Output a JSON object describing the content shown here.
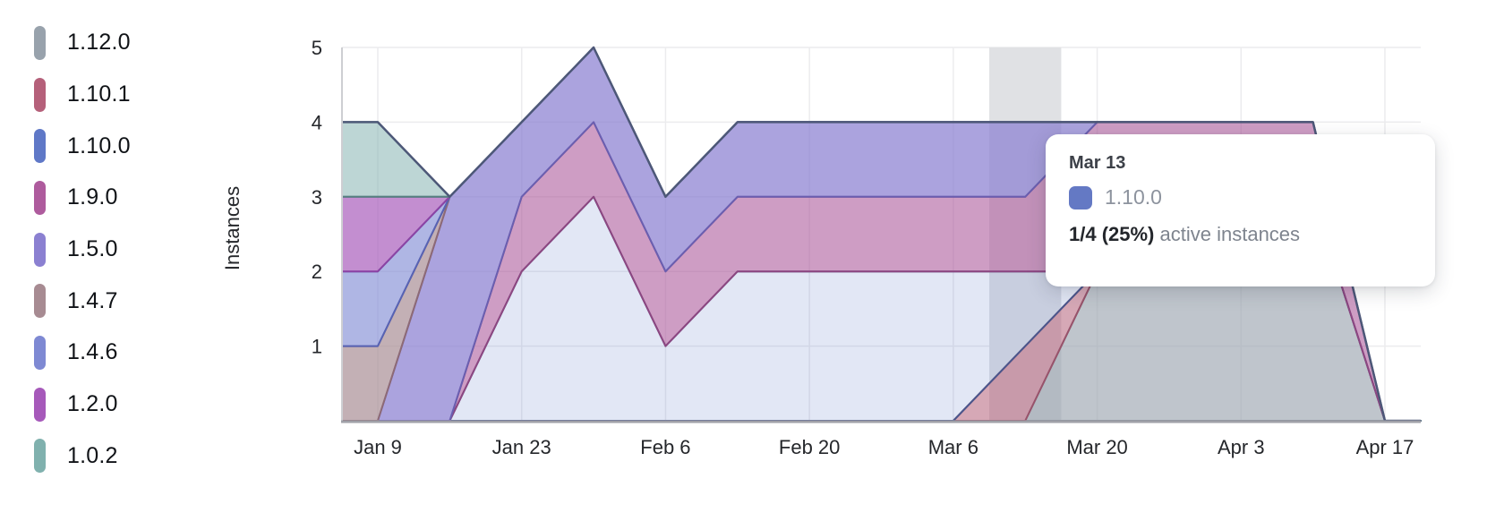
{
  "chart_data": {
    "type": "area",
    "stacked": true,
    "title": "",
    "xlabel": "",
    "ylabel": "Instances",
    "ylim": [
      0,
      5
    ],
    "y_ticks": [
      1,
      2,
      3,
      4,
      5
    ],
    "x_tick_labels": [
      "Jan 9",
      "Jan 23",
      "Feb 6",
      "Feb 20",
      "Mar 6",
      "Mar 20",
      "Apr 3",
      "Apr 17"
    ],
    "grid": true,
    "legend_position": "left",
    "dates": [
      "Jan 9",
      "Jan 16",
      "Jan 23",
      "Jan 30",
      "Feb 6",
      "Feb 13",
      "Feb 20",
      "Feb 27",
      "Mar 6",
      "Mar 13",
      "Mar 20",
      "Mar 27",
      "Apr 3",
      "Apr 10",
      "Apr 17"
    ],
    "stack_order_bottom_to_top": [
      "1.12.0",
      "1.10.1",
      "1.10.0",
      "1.9.0",
      "1.5.0",
      "1.4.7",
      "1.4.6",
      "1.2.0",
      "1.0.2"
    ],
    "series": [
      {
        "name": "1.12.0",
        "color": "#98a2ac",
        "stroke": "#838c98",
        "fill_opacity": 0.62,
        "values": [
          0,
          0,
          0,
          0,
          0,
          0,
          0,
          0,
          0,
          0,
          2,
          3,
          3,
          3,
          0
        ]
      },
      {
        "name": "1.10.1",
        "color": "#b5607a",
        "stroke": "#98536b",
        "fill_opacity": 0.55,
        "values": [
          0,
          0,
          0,
          0,
          0,
          0,
          0,
          0,
          0,
          1,
          0,
          0,
          0,
          0,
          0
        ]
      },
      {
        "name": "1.10.0",
        "color": "#5f78c7",
        "stroke": "#4a568c",
        "fill_opacity": 0.18,
        "values": [
          0,
          0,
          2,
          3,
          1,
          2,
          2,
          2,
          2,
          1,
          0,
          0,
          0,
          0,
          0
        ]
      },
      {
        "name": "1.9.0",
        "color": "#ae5b9d",
        "stroke": "#8c4781",
        "fill_opacity": 0.6,
        "values": [
          0,
          0,
          1,
          1,
          1,
          1,
          1,
          1,
          1,
          1,
          2,
          1,
          1,
          1,
          0
        ]
      },
      {
        "name": "1.5.0",
        "color": "#8b80d1",
        "stroke": "#6a5fb0",
        "fill_opacity": 0.72,
        "values": [
          0,
          3,
          1,
          1,
          1,
          1,
          1,
          1,
          1,
          1,
          0,
          0,
          0,
          0,
          0
        ]
      },
      {
        "name": "1.4.7",
        "color": "#a78b92",
        "stroke": "#8d6a76",
        "fill_opacity": 0.68,
        "values": [
          1,
          0,
          0,
          0,
          0,
          0,
          0,
          0,
          0,
          0,
          0,
          0,
          0,
          0,
          0
        ]
      },
      {
        "name": "1.4.6",
        "color": "#7e89d3",
        "stroke": "#5763b4",
        "fill_opacity": 0.62,
        "values": [
          1,
          0,
          0,
          0,
          0,
          0,
          0,
          0,
          0,
          0,
          0,
          0,
          0,
          0,
          0
        ]
      },
      {
        "name": "1.2.0",
        "color": "#a659ba",
        "stroke": "#8b44a4",
        "fill_opacity": 0.68,
        "values": [
          1,
          0,
          0,
          0,
          0,
          0,
          0,
          0,
          0,
          0,
          0,
          0,
          0,
          0,
          0
        ]
      },
      {
        "name": "1.0.2",
        "color": "#80b1ae",
        "stroke": "#55827f",
        "fill_opacity": 0.52,
        "values": [
          1,
          0,
          0,
          0,
          0,
          0,
          0,
          0,
          0,
          0,
          0,
          0,
          0,
          0,
          0
        ]
      }
    ],
    "total_instances": [
      4,
      3,
      4,
      5,
      3,
      4,
      4,
      4,
      4,
      4,
      4,
      4,
      4,
      4,
      0
    ],
    "total_line_color": "#4d5878",
    "hovered_date": "Mar 13",
    "hover_band_color": "#e0e1e4",
    "grid_color": "#ececee",
    "x_axis_color": "#a0a1a8",
    "y_axis_color": "#cdced2",
    "tick_color": "#25272b"
  },
  "legend": {
    "items": [
      {
        "label": "1.12.0",
        "color": "#98a2ac"
      },
      {
        "label": "1.10.1",
        "color": "#b5607a"
      },
      {
        "label": "1.10.0",
        "color": "#5f78c7"
      },
      {
        "label": "1.9.0",
        "color": "#ae5b9d"
      },
      {
        "label": "1.5.0",
        "color": "#8b80d1"
      },
      {
        "label": "1.4.7",
        "color": "#a78b92"
      },
      {
        "label": "1.4.6",
        "color": "#7e89d3"
      },
      {
        "label": "1.2.0",
        "color": "#a659ba"
      },
      {
        "label": "1.0.2",
        "color": "#80b1ae"
      }
    ]
  },
  "tooltip": {
    "date": "Mar 13",
    "series_name": "1.10.0",
    "swatch_color": "#6479c4",
    "value_text": "1/4 (25%)",
    "caption": "active instances"
  }
}
